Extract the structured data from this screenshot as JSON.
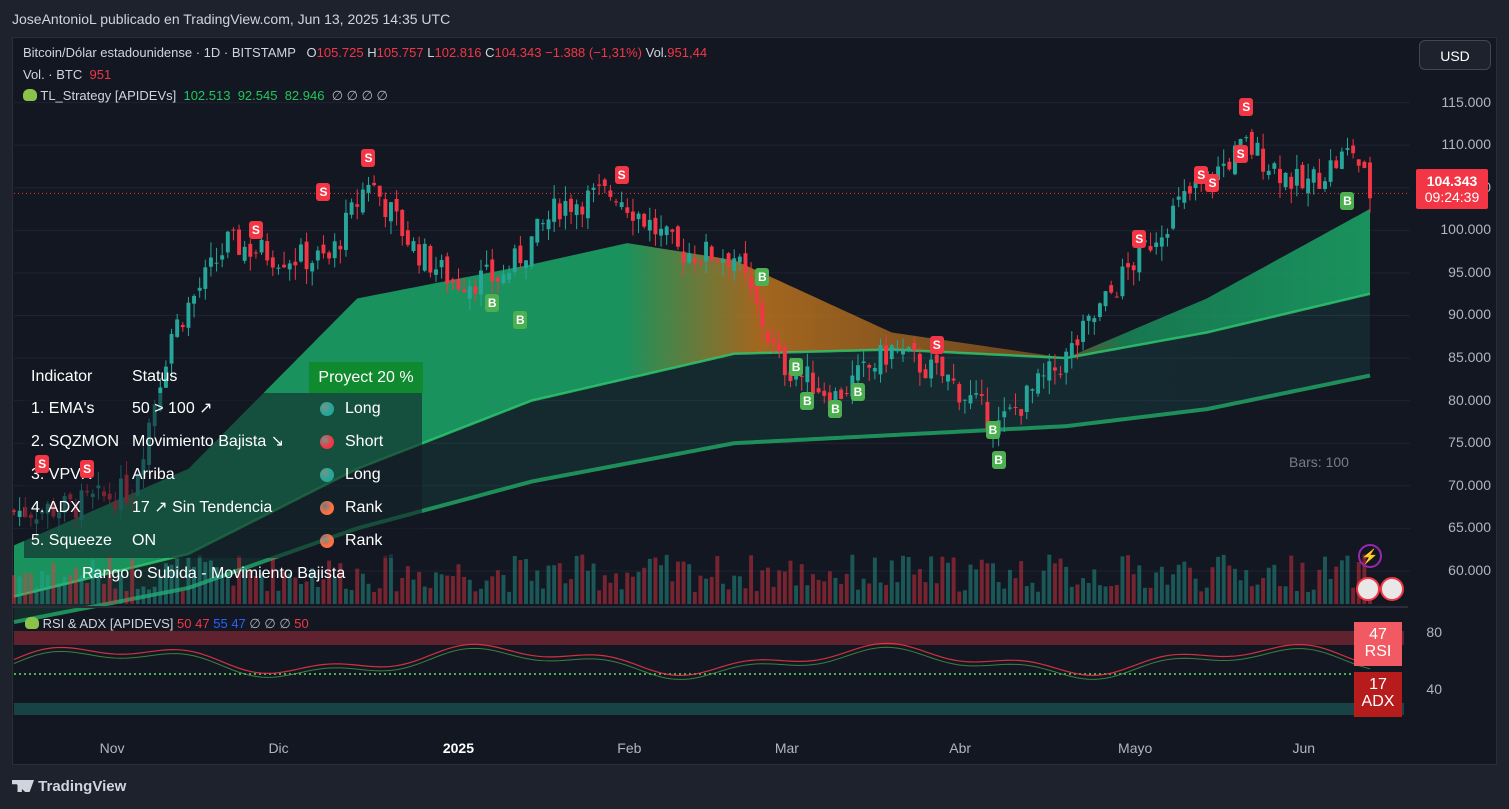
{
  "header": {
    "published": "JoseAntonioL publicado en TradingView.com, Jun 13, 2025 14:35 UTC"
  },
  "legend": {
    "symbol": "Bitcoin/Dólar estadounidense · 1D · BITSTAMP",
    "o_label": "O",
    "o": "105.725",
    "h_label": "H",
    "h": "105.757",
    "l_label": "L",
    "l": "102.816",
    "c_label": "C",
    "c": "104.343",
    "change": "−1.388 (−1,31%)",
    "vol_label": "Vol.",
    "vol": "951,44",
    "vol_row_label": "Vol. · BTC",
    "vol_row_value": "951",
    "strategy_name": "TL_Strategy [APIDEVs]",
    "strategy_values": [
      "102.513",
      "92.545",
      "82.946"
    ],
    "strategy_empty": "∅ ∅ ∅ ∅"
  },
  "currency": "USD",
  "indicator_table": {
    "header_indicator": "Indicator",
    "header_status": "Status",
    "project_label": "Proyect 20 %",
    "rows": [
      {
        "name": "1. EMA's",
        "status": "50 > 100 ↗",
        "signal": "Long",
        "dot_color": "#26a69a"
      },
      {
        "name": "2. SQZMON",
        "status": "Movimiento Bajista ↘",
        "signal": "Short",
        "dot_color": "#f23645"
      },
      {
        "name": "3. VPVR",
        "status": "Arriba",
        "signal": "Long",
        "dot_color": "#26a69a"
      },
      {
        "name": "4. ADX",
        "status": "17 ↗ Sin Tendencia",
        "signal": "Rank",
        "dot_color": "#ff7043"
      },
      {
        "name": "5. Squeeze",
        "status": "ON",
        "signal": "Rank",
        "dot_color": "#ff7043"
      }
    ],
    "footer": "Rango o Subida - Movimiento Bajista"
  },
  "price_tag": {
    "price": "104.343",
    "countdown": "09:24:39"
  },
  "bars_note": "Bars: 100",
  "rsi_pane": {
    "title": "RSI & ADX [APIDEVS]",
    "values": [
      "50",
      "47",
      "55",
      "47",
      "∅",
      "∅",
      "∅",
      "50"
    ],
    "rsi_value": "47",
    "rsi_label": "RSI",
    "adx_value": "17",
    "adx_label": "ADX",
    "axis": [
      "80",
      "40"
    ]
  },
  "footer": "TradingView",
  "colors": {
    "up": "#26a69a",
    "down": "#f23645",
    "band_green": "#1aa064",
    "band_orange": "#c87a1e"
  },
  "chart_data": {
    "type": "candlestick",
    "title": "Bitcoin/Dólar estadounidense · 1D · BITSTAMP",
    "x_ticks": [
      "Nov",
      "Dic",
      "2025",
      "Feb",
      "Mar",
      "Abr",
      "Mayo",
      "Jun"
    ],
    "y_ticks": [
      115000,
      110000,
      105000,
      100000,
      95000,
      90000,
      85000,
      80000,
      75000,
      70000,
      65000,
      60000
    ],
    "y_tick_labels": [
      "115.000",
      "110.000",
      "105.000",
      "100.000",
      "95.000",
      "90.000",
      "85.000",
      "80.000",
      "75.000",
      "70.000",
      "65.000",
      "60.000"
    ],
    "ylim": [
      56000,
      120000
    ],
    "last_price": 104343,
    "close_path": [
      {
        "date": "2024-10-15",
        "close": 67000
      },
      {
        "date": "2024-10-25",
        "close": 67500
      },
      {
        "date": "2024-11-05",
        "close": 69500
      },
      {
        "date": "2024-11-12",
        "close": 88000
      },
      {
        "date": "2024-11-22",
        "close": 98500
      },
      {
        "date": "2024-12-01",
        "close": 97000
      },
      {
        "date": "2024-12-10",
        "close": 96500
      },
      {
        "date": "2024-12-17",
        "close": 106000
      },
      {
        "date": "2024-12-25",
        "close": 98000
      },
      {
        "date": "2025-01-01",
        "close": 94000
      },
      {
        "date": "2025-01-10",
        "close": 94500
      },
      {
        "date": "2025-01-20",
        "close": 103000
      },
      {
        "date": "2025-01-30",
        "close": 104500
      },
      {
        "date": "2025-02-10",
        "close": 97500
      },
      {
        "date": "2025-02-20",
        "close": 97000
      },
      {
        "date": "2025-02-28",
        "close": 84500
      },
      {
        "date": "2025-03-10",
        "close": 80500
      },
      {
        "date": "2025-03-20",
        "close": 86000
      },
      {
        "date": "2025-03-30",
        "close": 82500
      },
      {
        "date": "2025-04-08",
        "close": 77000
      },
      {
        "date": "2025-04-20",
        "close": 85000
      },
      {
        "date": "2025-04-30",
        "close": 94500
      },
      {
        "date": "2025-05-10",
        "close": 103000
      },
      {
        "date": "2025-05-22",
        "close": 110000
      },
      {
        "date": "2025-06-01",
        "close": 105000
      },
      {
        "date": "2025-06-10",
        "close": 109500
      },
      {
        "date": "2025-06-13",
        "close": 104343
      }
    ],
    "ema_fast": [
      {
        "date": "2024-10-15",
        "v": 63000
      },
      {
        "date": "2024-11-15",
        "v": 72000
      },
      {
        "date": "2024-12-15",
        "v": 92000
      },
      {
        "date": "2025-01-15",
        "v": 96000
      },
      {
        "date": "2025-02-01",
        "v": 98500
      },
      {
        "date": "2025-02-20",
        "v": 96500
      },
      {
        "date": "2025-03-20",
        "v": 88000
      },
      {
        "date": "2025-04-20",
        "v": 85000
      },
      {
        "date": "2025-05-15",
        "v": 92000
      },
      {
        "date": "2025-06-13",
        "v": 102513
      }
    ],
    "ema_mid": [
      {
        "date": "2024-10-15",
        "v": 57000
      },
      {
        "date": "2024-11-15",
        "v": 62000
      },
      {
        "date": "2024-12-15",
        "v": 72000
      },
      {
        "date": "2025-01-15",
        "v": 80000
      },
      {
        "date": "2025-02-20",
        "v": 85500
      },
      {
        "date": "2025-03-20",
        "v": 86000
      },
      {
        "date": "2025-04-20",
        "v": 85000
      },
      {
        "date": "2025-05-15",
        "v": 88000
      },
      {
        "date": "2025-06-13",
        "v": 92545
      }
    ],
    "ema_slow": [
      {
        "date": "2024-10-15",
        "v": 54000
      },
      {
        "date": "2024-11-15",
        "v": 58000
      },
      {
        "date": "2024-12-15",
        "v": 65000
      },
      {
        "date": "2025-01-15",
        "v": 70500
      },
      {
        "date": "2025-02-20",
        "v": 75000
      },
      {
        "date": "2025-04-20",
        "v": 77000
      },
      {
        "date": "2025-05-15",
        "v": 79000
      },
      {
        "date": "2025-06-13",
        "v": 82946
      }
    ],
    "signals": [
      {
        "date": "2024-10-20",
        "type": "S",
        "price": 72500
      },
      {
        "date": "2024-10-28",
        "type": "S",
        "price": 72000
      },
      {
        "date": "2024-11-27",
        "type": "S",
        "price": 100000
      },
      {
        "date": "2024-12-09",
        "type": "S",
        "price": 104500
      },
      {
        "date": "2024-12-17",
        "type": "S",
        "price": 108500
      },
      {
        "date": "2025-01-08",
        "type": "B",
        "price": 91500
      },
      {
        "date": "2025-01-13",
        "type": "B",
        "price": 89500
      },
      {
        "date": "2025-01-31",
        "type": "S",
        "price": 106500
      },
      {
        "date": "2025-02-25",
        "type": "B",
        "price": 94500
      },
      {
        "date": "2025-03-03",
        "type": "B",
        "price": 84000
      },
      {
        "date": "2025-03-05",
        "type": "B",
        "price": 80000
      },
      {
        "date": "2025-03-10",
        "type": "B",
        "price": 79000
      },
      {
        "date": "2025-03-14",
        "type": "B",
        "price": 81000
      },
      {
        "date": "2025-03-28",
        "type": "S",
        "price": 86500
      },
      {
        "date": "2025-04-07",
        "type": "B",
        "price": 76500
      },
      {
        "date": "2025-04-08",
        "type": "B",
        "price": 73000
      },
      {
        "date": "2025-05-03",
        "type": "S",
        "price": 99000
      },
      {
        "date": "2025-05-14",
        "type": "S",
        "price": 106500
      },
      {
        "date": "2025-05-16",
        "type": "S",
        "price": 105500
      },
      {
        "date": "2025-05-21",
        "type": "S",
        "price": 109000
      },
      {
        "date": "2025-05-22",
        "type": "S",
        "price": 114500
      },
      {
        "date": "2025-06-09",
        "type": "B",
        "price": 103500
      }
    ]
  }
}
